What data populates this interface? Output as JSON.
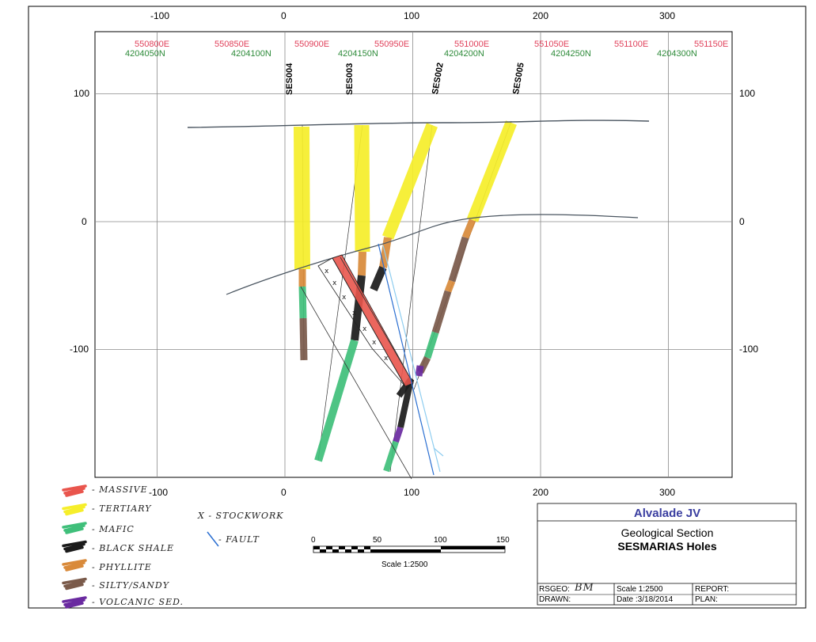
{
  "top_x_ticks": [
    "-100",
    "0",
    "100",
    "200",
    "300"
  ],
  "bottom_x_ticks": [
    "-100",
    "0",
    "100",
    "200",
    "300"
  ],
  "y_ticks": [
    "100",
    "0",
    "-100"
  ],
  "eastings": [
    "550800E",
    "550850E",
    "550900E",
    "550950E",
    "551000E",
    "551050E",
    "551100E",
    "551150E"
  ],
  "northings": [
    "4204050N",
    "4204100N",
    "4204150N",
    "4204200N",
    "4204250N",
    "4204300N"
  ],
  "holes": [
    "SES004",
    "SES003",
    "SES002",
    "SES005"
  ],
  "colors": {
    "massive": "#e9554d",
    "tertiary": "#f6ee2a",
    "mafic": "#3fbf7a",
    "black_shale": "#1b1b1b",
    "phyllite": "#d98a3a",
    "silty_sandy": "#7a5a4a",
    "volcanic_sed": "#6a2aa0",
    "fault": "#2b6fd1",
    "grid": "#8a8a8a",
    "surface": "#4a5560",
    "easting_label": "#e0405a",
    "northing_label": "#2e8b3a",
    "title_blue": "#3a3ea0"
  },
  "legend": {
    "items": [
      "- MASSIVE",
      "- TERTIARY",
      "- MAFIC",
      "- BLACK SHALE",
      "- PHYLLITE",
      "- SILTY/SANDY",
      "- VOLCANIC SED."
    ],
    "stockwork": "X - STOCKWORK",
    "fault": "- FAULT"
  },
  "scale_bar": {
    "ticks": [
      "0",
      "50",
      "100",
      "150"
    ],
    "caption": "Scale 1:2500"
  },
  "title_block": {
    "project": "Alvalade JV",
    "title_line1": "Geological Section",
    "title_line2": "SESMARIAS Holes",
    "rsgeo_label": "RSGEO:",
    "rsgeo_value": "BM",
    "drawn_label": "DRAWN:",
    "scale": "Scale 1:2500",
    "date": "Date :3/18/2014",
    "report": "REPORT:",
    "plan": "PLAN:"
  }
}
